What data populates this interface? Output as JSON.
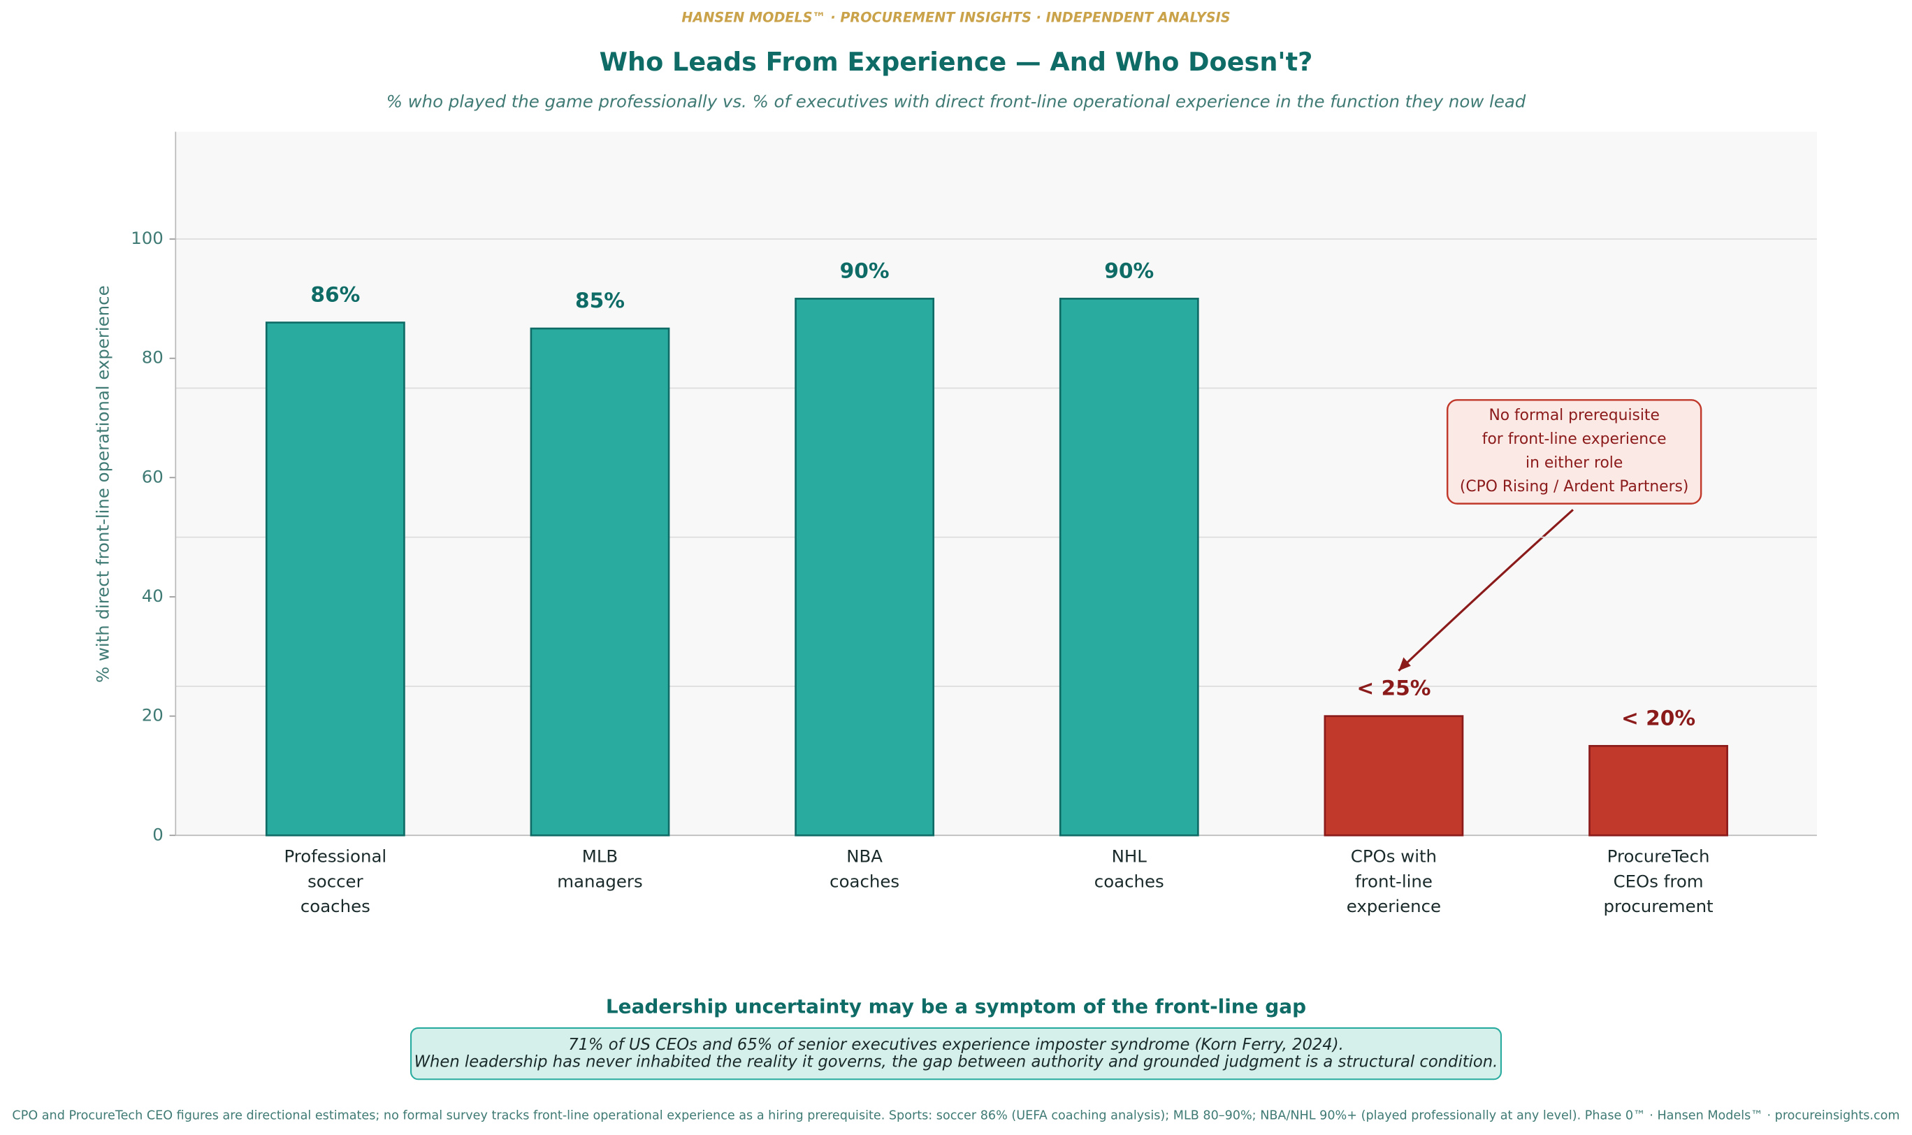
{
  "header": "HANSEN MODELS™  ·  PROCUREMENT INSIGHTS  ·  INDEPENDENT ANALYSIS",
  "chart_data": {
    "type": "bar",
    "title": "Who Leads From Experience — And Who Doesn't?",
    "subtitle": "% who played the game professionally vs. % of executives with direct front-line operational experience in the function they now lead",
    "y_label": "% with direct front-line operational experience",
    "categories": [
      "Professional\nsoccer\ncoaches",
      "MLB\nmanagers",
      "NBA\ncoaches",
      "NHL\ncoaches",
      "CPOs with\nfront-line\nexperience",
      "ProcureTech\nCEOs from\nprocurement"
    ],
    "values": [
      86,
      85,
      90,
      90,
      20,
      15
    ],
    "value_labels": [
      "86%",
      "85%",
      "90%",
      "90%",
      "< 25%",
      "< 20%"
    ],
    "colors": [
      "#2aab9f",
      "#2aab9f",
      "#2aab9f",
      "#2aab9f",
      "#c0392b",
      "#c0392b"
    ],
    "edge_colors": [
      "#0e6b66",
      "#0e6b66",
      "#0e6b66",
      "#0e6b66",
      "#8b1a1a",
      "#8b1a1a"
    ],
    "ylim": [
      0,
      118
    ],
    "yticks": [
      0,
      20,
      40,
      60,
      80,
      100
    ],
    "grid_lines": [
      25,
      50,
      75,
      100
    ],
    "annotation": [
      "No formal prerequisite",
      "for front-line experience",
      "in either role",
      "(CPO Rising / Ardent Partners)"
    ]
  },
  "callout": {
    "title": "Leadership uncertainty may be a symptom of the front-line gap",
    "lines": [
      "71% of US CEOs and 65% of senior executives experience imposter syndrome (Korn Ferry, 2024).",
      "When leadership has never inhabited the reality it governs, the gap between authority and grounded judgment is a structural condition."
    ]
  },
  "footnote": "CPO and ProcureTech CEO figures are directional estimates; no formal survey tracks front-line operational experience as a hiring prerequisite. Sports: soccer 86% (UEFA coaching analysis); MLB 80–90%; NBA/NHL 90%+ (played professionally at any level). Phase 0™ · Hansen Models™ · procureinsights.com"
}
